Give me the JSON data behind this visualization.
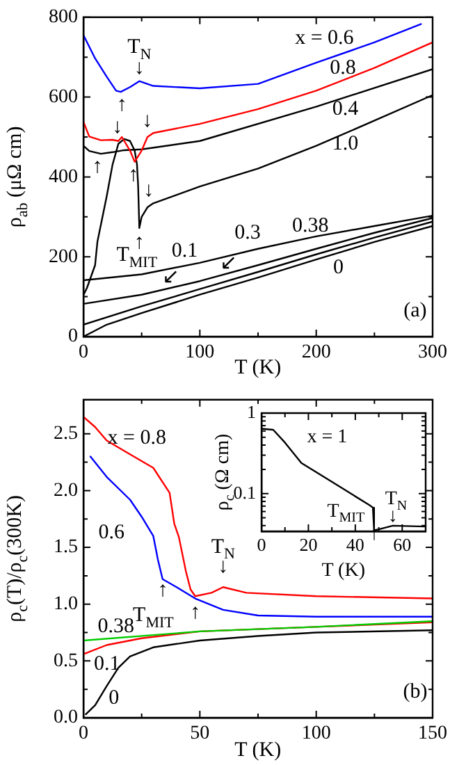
{
  "chart_data": [
    {
      "type": "line",
      "xlabel": "T (K)",
      "ylabel": "ρ$_{ab}$ (μΩ cm)",
      "xlim": [
        0,
        300
      ],
      "ylim": [
        0,
        800
      ],
      "marker": "none",
      "xticks": [
        0,
        {
          "value": 50,
          "label": null
        },
        100,
        {
          "value": 150,
          "label": null
        },
        200,
        {
          "value": 250,
          "label": null
        },
        300
      ],
      "yticks": [
        0,
        {
          "value": 100,
          "label": null
        },
        200,
        {
          "value": 300,
          "label": null
        },
        400,
        {
          "value": 500,
          "label": null
        },
        600,
        {
          "value": 700,
          "label": null
        },
        800
      ],
      "series": [
        {
          "color": "#0000ff",
          "x": [
            0,
            10,
            20,
            28,
            32,
            40,
            48,
            60,
            100,
            150,
            200,
            250,
            290
          ],
          "values": [
            755,
            697,
            651,
            616,
            613,
            625,
            640,
            628,
            622,
            633,
            686,
            737,
            783
          ]
        },
        {
          "color": "#ff0000",
          "x": [
            0,
            5,
            15,
            25,
            30,
            33,
            40,
            44,
            50,
            55,
            60,
            100,
            150,
            200,
            250,
            300
          ],
          "values": [
            538,
            501,
            492,
            493,
            490,
            500,
            466,
            438,
            466,
            500,
            510,
            533,
            570,
            616,
            673,
            737
          ]
        },
        {
          "color": "#000000",
          "x": [
            0,
            5,
            15,
            25,
            35,
            50,
            100,
            200,
            300
          ],
          "values": [
            478,
            465,
            458,
            462,
            467,
            469,
            490,
            576,
            670
          ]
        },
        {
          "color": "#000000",
          "x": [
            0,
            3,
            10,
            12,
            20,
            25,
            30,
            35,
            40,
            44,
            46,
            47,
            48,
            50,
            55,
            60,
            100,
            150,
            200,
            250,
            300
          ],
          "values": [
            104,
            122,
            179,
            238,
            352,
            431,
            483,
            495,
            490,
            466,
            431,
            376,
            272,
            300,
            324,
            334,
            376,
            421,
            478,
            541,
            605
          ]
        },
        {
          "color": "#000000",
          "x": [
            0,
            50,
            100,
            150,
            200,
            250,
            300
          ],
          "values": [
            141,
            156,
            185,
            220,
            251,
            277,
            303
          ]
        },
        {
          "color": "#000000",
          "x": [
            0,
            50,
            100,
            150,
            200,
            250,
            300
          ],
          "values": [
            82,
            105,
            139,
            179,
            220,
            260,
            297
          ]
        },
        {
          "color": "#000000",
          "x": [
            0,
            50,
            100,
            150,
            200,
            250,
            300
          ],
          "values": [
            30,
            76,
            119,
            162,
            206,
            248,
            288
          ]
        },
        {
          "color": "#000000",
          "x": [
            0,
            20,
            50,
            100,
            150,
            200,
            250,
            300
          ],
          "values": [
            0,
            30,
            59,
            105,
            148,
            193,
            237,
            277
          ]
        }
      ],
      "annotations": [
        "x = 0.6",
        "0.8",
        "0.4",
        "1.0",
        "0.38",
        "0.3",
        "↙",
        "0.1",
        "↙",
        "0",
        "T$_{N}$",
        "↓",
        "↑",
        "↑",
        "↓",
        "↑",
        "↓",
        "↓",
        "↑",
        "T$_{MIT}$",
        "(a)"
      ]
    },
    {
      "type": "line",
      "xlabel": "T (K)",
      "ylabel": "ρ$_{c}$(T)/ρ$_{c}$(300K)",
      "xlim": [
        0,
        150
      ],
      "ylim": [
        0,
        2.8
      ],
      "marker": "none",
      "xticks": [
        0,
        {
          "value": 25,
          "label": null
        },
        50,
        {
          "value": 75,
          "label": null
        },
        100,
        {
          "value": 125,
          "label": null
        },
        150
      ],
      "yticks": [
        {
          "value": 0,
          "label": "0.0"
        },
        {
          "value": 0.25,
          "label": null
        },
        0.5,
        {
          "value": 0.75,
          "label": null
        },
        {
          "value": 1,
          "label": "1.0"
        },
        {
          "value": 1.25,
          "label": null
        },
        1.5,
        {
          "value": 1.75,
          "label": null
        },
        {
          "value": 2,
          "label": "2.0"
        },
        {
          "value": 2.25,
          "label": null
        },
        2.5
      ],
      "series": [
        {
          "color": "#ff0000",
          "x": [
            0,
            5,
            10,
            20,
            30,
            37,
            39,
            41,
            44,
            46,
            48,
            55,
            60,
            70,
            100,
            150
          ],
          "values": [
            2.65,
            2.56,
            2.44,
            2.32,
            2.2,
            1.98,
            1.71,
            1.59,
            1.29,
            1.13,
            1.07,
            1.1,
            1.15,
            1.1,
            1.07,
            1.05
          ]
        },
        {
          "color": "#0000ff",
          "x": [
            3,
            10,
            20,
            25,
            30,
            32,
            34,
            40,
            48,
            60,
            75,
            100,
            150
          ],
          "values": [
            2.3,
            2.12,
            1.92,
            1.77,
            1.6,
            1.39,
            1.22,
            1.15,
            1.05,
            0.95,
            0.9,
            0.89,
            0.89
          ]
        },
        {
          "color": "#00cc00",
          "x": [
            0,
            50,
            100,
            150
          ],
          "values": [
            0.68,
            0.76,
            0.8,
            0.85
          ]
        },
        {
          "color": "#ff0000",
          "x": [
            0,
            10,
            25,
            50,
            100,
            150
          ],
          "values": [
            0.56,
            0.64,
            0.7,
            0.76,
            0.8,
            0.84
          ]
        },
        {
          "color": "#000000",
          "x": [
            1,
            5,
            10,
            15,
            20,
            30,
            50,
            75,
            100,
            150
          ],
          "values": [
            0.03,
            0.11,
            0.28,
            0.44,
            0.54,
            0.62,
            0.68,
            0.72,
            0.75,
            0.77
          ]
        }
      ],
      "annotations": [
        "x = 0.8",
        "0.6",
        "0.38",
        "0.1",
        "0",
        "T$_{MIT}$",
        "↑",
        "↑",
        "T$_{N}$",
        "↓",
        "(b)"
      ]
    },
    {
      "type": "line",
      "xlabel": "T (K)",
      "ylabel": "ρ$_{c}$ (Ω cm)",
      "xlim": [
        0,
        70
      ],
      "ylim": [
        0.034,
        1
      ],
      "log": "y",
      "marker": "none",
      "xticks": [
        0,
        {
          "value": 10,
          "label": null
        },
        20,
        {
          "value": 30,
          "label": null
        },
        40,
        {
          "value": 50,
          "label": null
        },
        60
      ],
      "yticks": [
        {
          "value": 0.04,
          "label": null
        },
        {
          "value": 0.05,
          "label": null
        },
        {
          "value": 0.06,
          "label": null
        },
        {
          "value": 0.07,
          "label": null
        },
        {
          "value": 0.08,
          "label": null
        },
        {
          "value": 0.09,
          "label": null
        },
        0.1,
        {
          "value": 0.2,
          "label": null
        },
        {
          "value": 0.3,
          "label": null
        },
        {
          "value": 0.4,
          "label": null
        },
        {
          "value": 0.5,
          "label": null
        },
        {
          "value": 0.6,
          "label": null
        },
        {
          "value": 0.7,
          "label": null
        },
        {
          "value": 0.8,
          "label": null
        },
        {
          "value": 0.9,
          "label": null
        },
        1
      ],
      "series": [
        {
          "color": "#000000",
          "x": [
            0,
            5,
            10,
            17,
            30,
            46,
            47.5,
            48,
            50,
            56,
            70
          ],
          "values": [
            0.64,
            0.62,
            0.43,
            0.24,
            0.14,
            0.072,
            0.067,
            0.035,
            0.036,
            0.04,
            0.039
          ]
        }
      ],
      "annotations": [
        "x = 1",
        "T$_{MIT}$",
        "↑",
        "T$_{N}$",
        "↓"
      ]
    }
  ]
}
